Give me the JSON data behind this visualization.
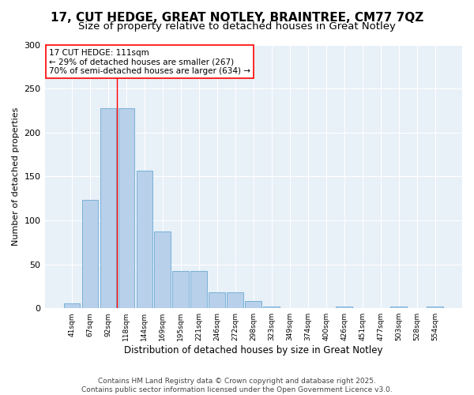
{
  "title": "17, CUT HEDGE, GREAT NOTLEY, BRAINTREE, CM77 7QZ",
  "subtitle": "Size of property relative to detached houses in Great Notley",
  "xlabel": "Distribution of detached houses by size in Great Notley",
  "ylabel": "Number of detached properties",
  "categories": [
    "41sqm",
    "67sqm",
    "92sqm",
    "118sqm",
    "144sqm",
    "169sqm",
    "195sqm",
    "221sqm",
    "246sqm",
    "272sqm",
    "298sqm",
    "323sqm",
    "349sqm",
    "374sqm",
    "400sqm",
    "426sqm",
    "451sqm",
    "477sqm",
    "503sqm",
    "528sqm",
    "554sqm"
  ],
  "values": [
    6,
    123,
    228,
    228,
    157,
    87,
    42,
    42,
    18,
    18,
    8,
    2,
    0,
    0,
    0,
    2,
    0,
    0,
    2,
    0,
    2
  ],
  "bar_color": "#b8d0ea",
  "bar_edge_color": "#6aaad4",
  "vline_x": 2.5,
  "vline_color": "red",
  "annotation_text": "17 CUT HEDGE: 111sqm\n← 29% of detached houses are smaller (267)\n70% of semi-detached houses are larger (634) →",
  "annotation_box_color": "white",
  "annotation_box_edge": "red",
  "ylim": [
    0,
    300
  ],
  "yticks": [
    0,
    50,
    100,
    150,
    200,
    250,
    300
  ],
  "background_color": "#e8f0f8",
  "footer": "Contains HM Land Registry data © Crown copyright and database right 2025.\nContains public sector information licensed under the Open Government Licence v3.0.",
  "title_fontsize": 11,
  "subtitle_fontsize": 9.5,
  "xlabel_fontsize": 8.5,
  "ylabel_fontsize": 8,
  "footer_fontsize": 6.5,
  "ann_fontsize": 7.5
}
